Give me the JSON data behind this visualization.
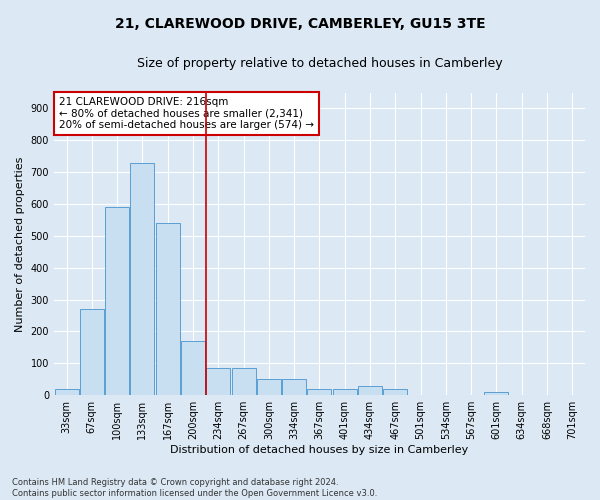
{
  "title_line1": "21, CLAREWOOD DRIVE, CAMBERLEY, GU15 3TE",
  "title_line2": "Size of property relative to detached houses in Camberley",
  "xlabel": "Distribution of detached houses by size in Camberley",
  "ylabel": "Number of detached properties",
  "bar_color": "#c8dff2",
  "bar_edge_color": "#5a9fd4",
  "bins": [
    "33sqm",
    "67sqm",
    "100sqm",
    "133sqm",
    "167sqm",
    "200sqm",
    "234sqm",
    "267sqm",
    "300sqm",
    "334sqm",
    "367sqm",
    "401sqm",
    "434sqm",
    "467sqm",
    "501sqm",
    "534sqm",
    "567sqm",
    "601sqm",
    "634sqm",
    "668sqm",
    "701sqm"
  ],
  "values": [
    20,
    270,
    590,
    730,
    540,
    170,
    85,
    85,
    50,
    50,
    20,
    20,
    30,
    20,
    0,
    0,
    0,
    10,
    0,
    0,
    0
  ],
  "ylim": [
    0,
    950
  ],
  "yticks": [
    0,
    100,
    200,
    300,
    400,
    500,
    600,
    700,
    800,
    900
  ],
  "vline_pos": 5.5,
  "vline_color": "#cc0000",
  "annotation_text": "21 CLAREWOOD DRIVE: 216sqm\n← 80% of detached houses are smaller (2,341)\n20% of semi-detached houses are larger (574) →",
  "annotation_box_facecolor": "#ffffff",
  "annotation_box_edgecolor": "#cc0000",
  "background_color": "#dce9f5",
  "grid_color": "#ffffff",
  "title_fontsize": 10,
  "subtitle_fontsize": 9,
  "tick_fontsize": 7,
  "ylabel_fontsize": 8,
  "xlabel_fontsize": 8,
  "annotation_fontsize": 7.5,
  "footer_text": "Contains HM Land Registry data © Crown copyright and database right 2024.\nContains public sector information licensed under the Open Government Licence v3.0."
}
